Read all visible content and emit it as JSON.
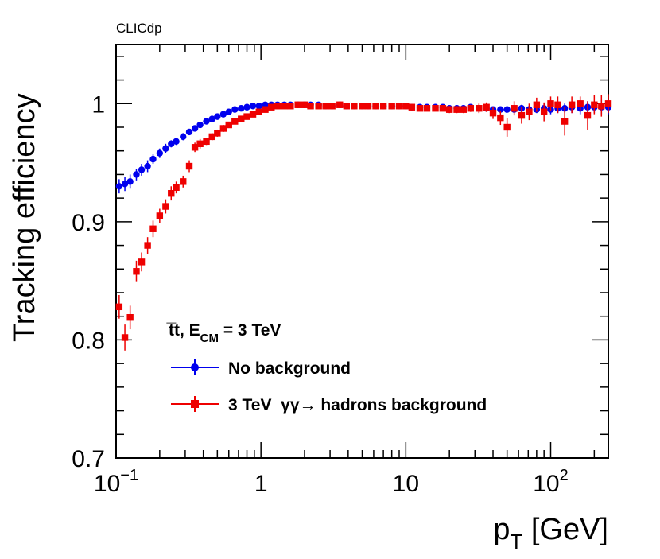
{
  "header": "CLICdp",
  "chart_data": {
    "type": "scatter",
    "ylabel": "Tracking efficiency",
    "xlabel": {
      "base": "p",
      "sub": "T",
      "unit": " [GeV]"
    },
    "xscale": "log",
    "xlim": [
      0.1,
      250
    ],
    "ylim": [
      0.7,
      1.05
    ],
    "x_ticks": [
      {
        "value": 0.1,
        "base": "10",
        "exp": "−1"
      },
      {
        "value": 1,
        "base": "1",
        "exp": ""
      },
      {
        "value": 10,
        "base": "10",
        "exp": ""
      },
      {
        "value": 100,
        "base": "10",
        "exp": "2"
      }
    ],
    "y_ticks": [
      {
        "value": 0.7,
        "label": "0.7"
      },
      {
        "value": 0.8,
        "label": "0.8"
      },
      {
        "value": 0.9,
        "label": "0.9"
      },
      {
        "value": 1.0,
        "label": "1"
      }
    ],
    "legend": {
      "title": {
        "main": "t̅t, E",
        "sub": "CM",
        "rest": " = 3 TeV"
      },
      "placement": "bottom-left"
    },
    "series": [
      {
        "name": "No background",
        "color": "#0000ee",
        "marker": "circle",
        "x": [
          0.105,
          0.115,
          0.125,
          0.138,
          0.15,
          0.165,
          0.18,
          0.2,
          0.22,
          0.24,
          0.26,
          0.29,
          0.32,
          0.35,
          0.38,
          0.42,
          0.46,
          0.5,
          0.55,
          0.6,
          0.66,
          0.73,
          0.8,
          0.88,
          0.97,
          1.07,
          1.18,
          1.3,
          1.45,
          1.6,
          1.8,
          2.0,
          2.2,
          2.5,
          2.8,
          3.1,
          3.5,
          3.9,
          4.4,
          5,
          5.5,
          6.2,
          7,
          8,
          9,
          10,
          11,
          12.5,
          14,
          16,
          18,
          20,
          22.5,
          25,
          28,
          32,
          36,
          40,
          45,
          50,
          56,
          63,
          71,
          80,
          90,
          100,
          112,
          125,
          140,
          160,
          180,
          200,
          224,
          250
        ],
        "y": [
          0.93,
          0.932,
          0.934,
          0.94,
          0.944,
          0.947,
          0.953,
          0.958,
          0.962,
          0.966,
          0.968,
          0.972,
          0.976,
          0.979,
          0.982,
          0.985,
          0.987,
          0.989,
          0.991,
          0.993,
          0.995,
          0.996,
          0.997,
          0.998,
          0.998,
          0.999,
          0.999,
          0.999,
          0.999,
          0.999,
          0.999,
          0.999,
          0.999,
          0.999,
          0.998,
          0.998,
          0.999,
          0.998,
          0.998,
          0.998,
          0.998,
          0.998,
          0.998,
          0.998,
          0.998,
          0.998,
          0.997,
          0.997,
          0.997,
          0.997,
          0.997,
          0.996,
          0.996,
          0.996,
          0.997,
          0.996,
          0.996,
          0.995,
          0.995,
          0.995,
          0.995,
          0.996,
          0.995,
          0.995,
          0.996,
          0.995,
          0.996,
          0.996,
          0.997,
          0.996,
          0.997,
          0.997,
          0.997,
          0.997
        ],
        "err": [
          0.006,
          0.006,
          0.006,
          0.005,
          0.005,
          0.005,
          0.004,
          0.004,
          0.004,
          0.003,
          0.003,
          0.003,
          0.002,
          0.002,
          0.002,
          0.002,
          0.002,
          0.001,
          0.001,
          0.001,
          0.001,
          0.001,
          0.001,
          0.001,
          0.001,
          0.001,
          0.001,
          0.001,
          0.001,
          0.001,
          0.001,
          0.001,
          0.001,
          0.001,
          0.001,
          0.001,
          0.001,
          0.001,
          0.001,
          0.001,
          0.001,
          0.001,
          0.001,
          0.001,
          0.001,
          0.001,
          0.001,
          0.001,
          0.001,
          0.001,
          0.001,
          0.001,
          0.001,
          0.001,
          0.001,
          0.002,
          0.002,
          0.002,
          0.002,
          0.002,
          0.003,
          0.003,
          0.003,
          0.003,
          0.004,
          0.004,
          0.004,
          0.004,
          0.005,
          0.005,
          0.005,
          0.005,
          0.006,
          0.006
        ]
      },
      {
        "name": "3 TeV  γγ→ hadrons background",
        "color": "#ee0000",
        "marker": "square",
        "x": [
          0.105,
          0.115,
          0.125,
          0.138,
          0.15,
          0.165,
          0.18,
          0.2,
          0.22,
          0.24,
          0.26,
          0.29,
          0.32,
          0.35,
          0.38,
          0.42,
          0.46,
          0.5,
          0.55,
          0.6,
          0.66,
          0.73,
          0.8,
          0.88,
          0.97,
          1.07,
          1.18,
          1.3,
          1.45,
          1.6,
          1.8,
          2.0,
          2.2,
          2.5,
          2.8,
          3.1,
          3.5,
          3.9,
          4.4,
          5,
          5.5,
          6.2,
          7,
          8,
          9,
          10,
          11,
          12.5,
          14,
          16,
          18,
          20,
          22.5,
          25,
          28,
          32,
          36,
          40,
          45,
          50,
          56,
          63,
          71,
          80,
          90,
          100,
          112,
          125,
          140,
          160,
          180,
          200,
          224,
          250
        ],
        "y": [
          0.828,
          0.802,
          0.819,
          0.858,
          0.866,
          0.88,
          0.894,
          0.905,
          0.913,
          0.924,
          0.929,
          0.934,
          0.947,
          0.963,
          0.966,
          0.968,
          0.972,
          0.975,
          0.979,
          0.982,
          0.985,
          0.987,
          0.989,
          0.991,
          0.993,
          0.995,
          0.997,
          0.998,
          0.998,
          0.998,
          0.999,
          0.999,
          0.998,
          0.998,
          0.998,
          0.998,
          0.999,
          0.998,
          0.998,
          0.998,
          0.998,
          0.998,
          0.998,
          0.998,
          0.998,
          0.998,
          0.997,
          0.996,
          0.996,
          0.996,
          0.996,
          0.995,
          0.995,
          0.995,
          0.996,
          0.996,
          0.997,
          0.992,
          0.988,
          0.98,
          0.996,
          0.99,
          0.993,
          0.999,
          0.993,
          1.0,
          0.999,
          0.985,
          0.999,
          1.0,
          0.99,
          0.999,
          0.998,
          1.0
        ],
        "err": [
          0.01,
          0.011,
          0.01,
          0.009,
          0.008,
          0.007,
          0.007,
          0.006,
          0.006,
          0.006,
          0.005,
          0.005,
          0.005,
          0.004,
          0.004,
          0.003,
          0.003,
          0.003,
          0.003,
          0.002,
          0.002,
          0.002,
          0.002,
          0.002,
          0.001,
          0.001,
          0.001,
          0.001,
          0.001,
          0.001,
          0.001,
          0.001,
          0.001,
          0.001,
          0.001,
          0.001,
          0.001,
          0.001,
          0.001,
          0.001,
          0.001,
          0.001,
          0.001,
          0.001,
          0.001,
          0.002,
          0.002,
          0.002,
          0.002,
          0.002,
          0.002,
          0.003,
          0.003,
          0.003,
          0.003,
          0.004,
          0.004,
          0.005,
          0.006,
          0.008,
          0.006,
          0.007,
          0.007,
          0.006,
          0.008,
          0.006,
          0.007,
          0.012,
          0.007,
          0.006,
          0.012,
          0.008,
          0.009,
          0.008
        ]
      }
    ]
  }
}
